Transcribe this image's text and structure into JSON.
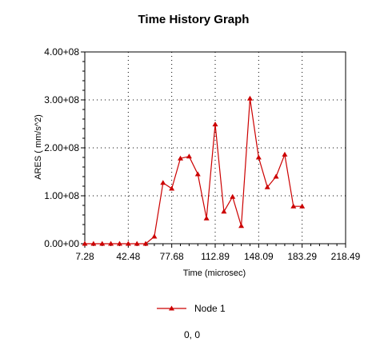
{
  "chart_data": {
    "type": "line",
    "title": "Time History Graph",
    "xlabel": "Time (microsec)",
    "ylabel": "ARES ( mm/s^2)",
    "xlim": [
      7.28,
      218.49
    ],
    "ylim": [
      0,
      400000000
    ],
    "xticks": [
      "7.28",
      "42.48",
      "77.68",
      "112.89",
      "148.09",
      "183.29",
      "218.49"
    ],
    "yticks": [
      "0.00+00",
      "1.00+08",
      "2.00+08",
      "3.00+08",
      "4.00+08"
    ],
    "grid": true,
    "legend_position": "bottom",
    "series": [
      {
        "name": "Node 1",
        "color": "#cc0000",
        "marker": "triangle",
        "x": [
          7.28,
          14.32,
          21.36,
          28.4,
          35.44,
          42.48,
          49.52,
          56.56,
          63.6,
          70.64,
          77.68,
          84.72,
          91.76,
          98.8,
          105.84,
          112.89,
          119.93,
          126.97,
          134.01,
          141.05,
          148.09,
          155.13,
          162.17,
          169.21,
          176.25,
          183.29
        ],
        "y": [
          0,
          0,
          0,
          0,
          0,
          0,
          0,
          0,
          15000000,
          127000000,
          115000000,
          178000000,
          182000000,
          145000000,
          53000000,
          249000000,
          67000000,
          98000000,
          37000000,
          303000000,
          180000000,
          118000000,
          140000000,
          186000000,
          78000000,
          78000000
        ]
      }
    ]
  },
  "status": {
    "coords": "0, 0"
  }
}
